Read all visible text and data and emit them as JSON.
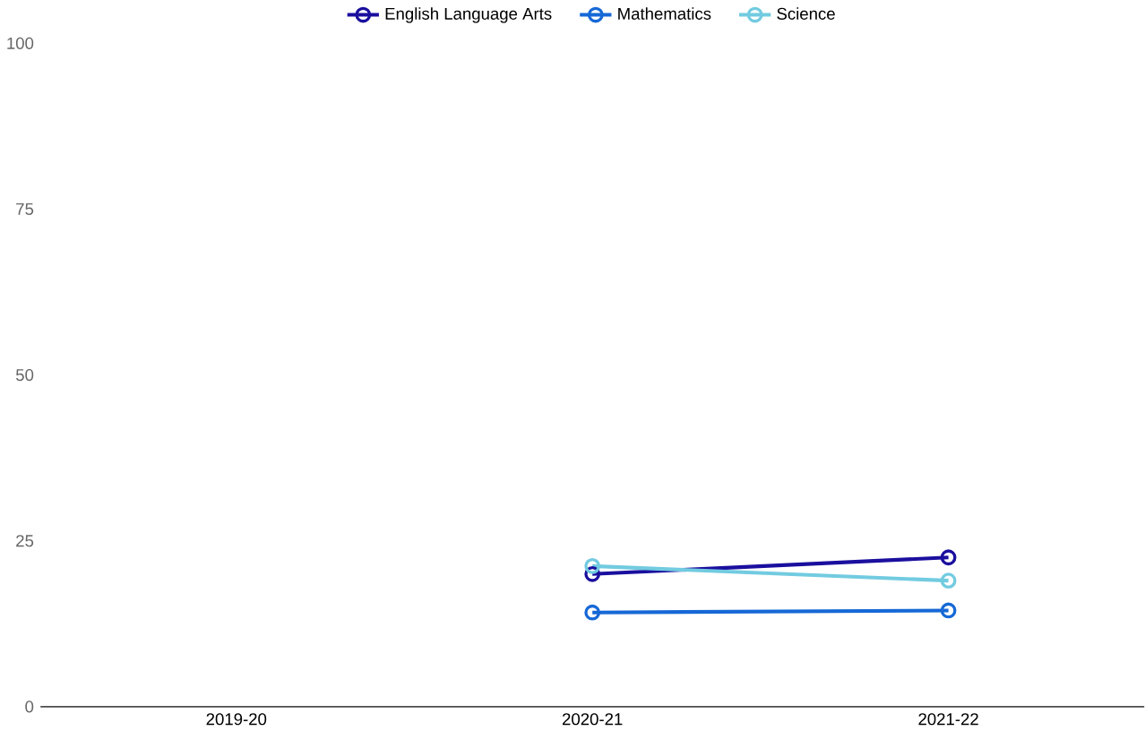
{
  "chart_data": {
    "type": "line",
    "categories": [
      "2019-20",
      "2020-21",
      "2021-22"
    ],
    "series": [
      {
        "name": "English Language Arts",
        "color": "#1a0f9e",
        "values": [
          null,
          20.0,
          22.5
        ]
      },
      {
        "name": "Mathematics",
        "color": "#1668d6",
        "values": [
          null,
          14.2,
          14.5
        ]
      },
      {
        "name": "Science",
        "color": "#72cbe0",
        "values": [
          null,
          21.2,
          19.0
        ]
      }
    ],
    "ylim": [
      0,
      100
    ],
    "yticks": [
      0,
      25,
      50,
      75,
      100
    ],
    "grid": false,
    "legend": "top",
    "marker": "circle"
  }
}
